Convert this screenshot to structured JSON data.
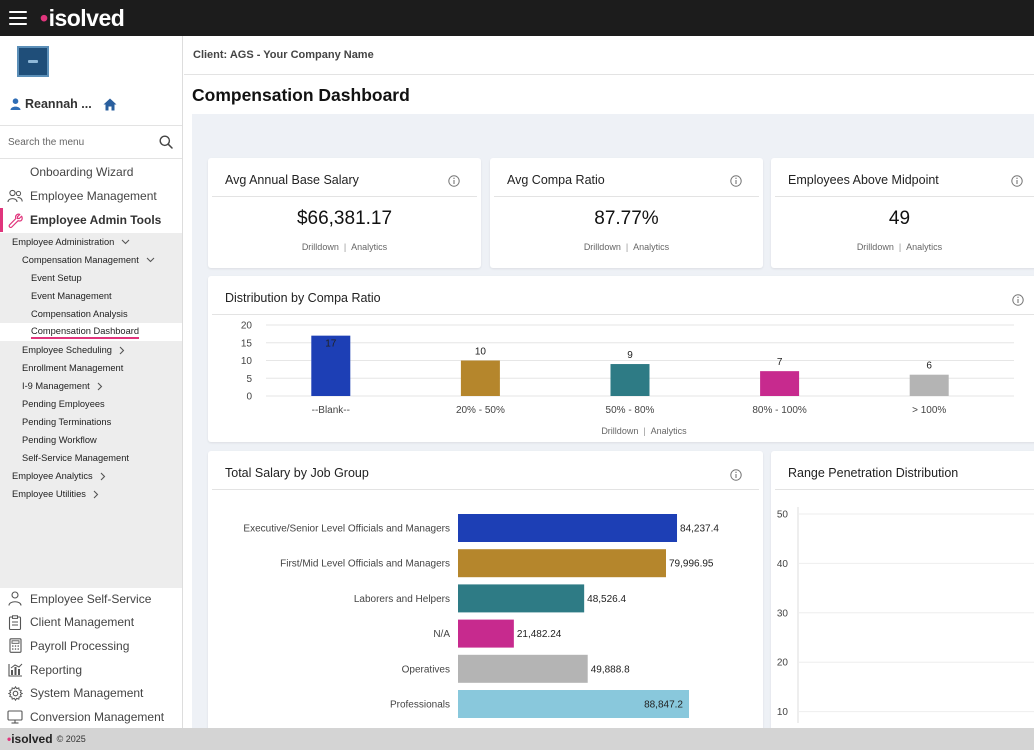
{
  "app": {
    "brand": "isolved",
    "footer_text": "© 2025"
  },
  "sidebar": {
    "user_name": "Reannah ...",
    "search_placeholder": "Search the menu",
    "top_items": [
      {
        "label": "Onboarding Wizard"
      },
      {
        "label": "Employee Management"
      },
      {
        "label": "Employee Admin Tools"
      }
    ],
    "sub_items": [
      {
        "label": "Employee Administration"
      },
      {
        "label": "Compensation Management"
      },
      {
        "label": "Event Setup"
      },
      {
        "label": "Event Management"
      },
      {
        "label": "Compensation Analysis"
      },
      {
        "label": "Compensation Dashboard"
      },
      {
        "label": "Employee Scheduling"
      },
      {
        "label": "Enrollment Management"
      },
      {
        "label": "I-9 Management"
      },
      {
        "label": "Pending Employees"
      },
      {
        "label": "Pending Terminations"
      },
      {
        "label": "Pending Workflow"
      },
      {
        "label": "Self-Service Management"
      },
      {
        "label": "Employee Analytics"
      },
      {
        "label": "Employee Utilities"
      }
    ],
    "bottom_items": [
      {
        "label": "Employee Self-Service"
      },
      {
        "label": "Client Management"
      },
      {
        "label": "Payroll Processing"
      },
      {
        "label": "Reporting"
      },
      {
        "label": "System Management"
      },
      {
        "label": "Conversion Management"
      }
    ]
  },
  "main": {
    "client_label": "Client: AGS - Your Company Name",
    "page_title": "Compensation Dashboard",
    "links": {
      "drilldown": "Drilldown",
      "analytics": "Analytics"
    },
    "kpis": [
      {
        "title": "Avg Annual Base Salary",
        "value": "$66,381.17"
      },
      {
        "title": "Avg Compa Ratio",
        "value": "87.77%"
      },
      {
        "title": "Employees Above Midpoint",
        "value": "49"
      }
    ],
    "cards": {
      "distribution_title": "Distribution by Compa Ratio",
      "salary_title": "Total Salary by Job Group",
      "range_title": "Range Penetration Distribution"
    }
  },
  "chart_data": [
    {
      "type": "bar",
      "title": "Distribution by Compa Ratio",
      "categories": [
        "--Blank--",
        "20% - 50%",
        "50% - 80%",
        "80% - 100%",
        "> 100%"
      ],
      "values": [
        17,
        10,
        9,
        7,
        6
      ],
      "value_labels": [
        "17",
        "10",
        "9",
        "7",
        "6"
      ],
      "colors": [
        "#1d3fb5",
        "#b5862c",
        "#2e7b85",
        "#c72a8e",
        "#b4b4b4"
      ],
      "yticks": [
        "20",
        "15",
        "10",
        "5",
        "0"
      ],
      "ylim": [
        0,
        20
      ]
    },
    {
      "type": "bar",
      "orientation": "horizontal",
      "title": "Total Salary by Job Group",
      "categories": [
        "Executive/Senior Level Officials and Managers",
        "First/Mid Level Officials and Managers",
        "Laborers and Helpers",
        "N/A",
        "Operatives",
        "Professionals"
      ],
      "values": [
        84237.4,
        79996.95,
        48526.4,
        21482.24,
        49888.8,
        88847.2
      ],
      "value_labels": [
        "84,237.4",
        "79,996.95",
        "48,526.4",
        "21,482.24",
        "49,888.8",
        "88,847.2"
      ],
      "colors": [
        "#1d3fb5",
        "#b5862c",
        "#2e7b85",
        "#c72a8e",
        "#b4b4b4",
        "#89c8dc"
      ],
      "xlim": [
        0,
        100000
      ]
    },
    {
      "type": "bar",
      "title": "Range Penetration Distribution",
      "yticks": [
        "50",
        "40",
        "30",
        "20",
        "10"
      ],
      "ylim": [
        0,
        50
      ]
    }
  ]
}
